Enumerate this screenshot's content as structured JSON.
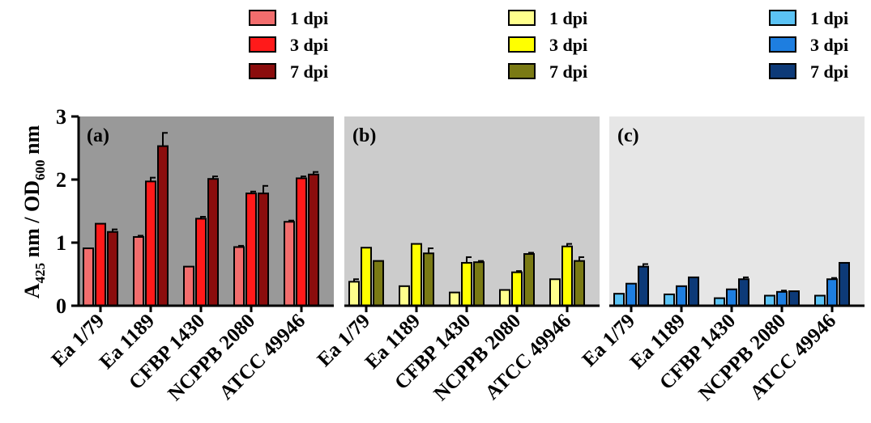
{
  "chart_data": {
    "type": "bar",
    "ylabel_parts": [
      "A",
      "425",
      " nm / OD",
      "600",
      " nm"
    ],
    "ylim": [
      0,
      3
    ],
    "yticks": [
      "0",
      "1",
      "2",
      "3"
    ],
    "categories": [
      "Ea 1/79",
      "Ea 1189",
      "CFBP 1430",
      "NCPPB 2080",
      "ATCC 49946"
    ],
    "panels": [
      {
        "label": "(a)",
        "background": "#999999",
        "series": [
          {
            "name": "1 dpi",
            "color": "#f26d6d",
            "values": [
              0.91,
              1.09,
              0.62,
              0.93,
              1.33
            ],
            "errors": [
              0.0,
              0.02,
              0.0,
              0.02,
              0.02
            ]
          },
          {
            "name": "3 dpi",
            "color": "#ff1a1a",
            "values": [
              1.3,
              1.97,
              1.38,
              1.78,
              2.02
            ],
            "errors": [
              0.0,
              0.06,
              0.03,
              0.03,
              0.03
            ]
          },
          {
            "name": "7 dpi",
            "color": "#8b0d0d",
            "values": [
              1.17,
              2.53,
              2.01,
              1.78,
              2.08
            ],
            "errors": [
              0.04,
              0.21,
              0.04,
              0.12,
              0.04
            ]
          }
        ]
      },
      {
        "label": "(b)",
        "background": "#cccccc",
        "series": [
          {
            "name": "1 dpi",
            "color": "#ffff8c",
            "values": [
              0.38,
              0.31,
              0.21,
              0.25,
              0.42
            ],
            "errors": [
              0.04,
              0.0,
              0.0,
              0.0,
              0.0
            ]
          },
          {
            "name": "3 dpi",
            "color": "#ffff00",
            "values": [
              0.92,
              0.98,
              0.68,
              0.53,
              0.94
            ],
            "errors": [
              0.0,
              0.0,
              0.09,
              0.02,
              0.04
            ]
          },
          {
            "name": "7 dpi",
            "color": "#7a7a14",
            "values": [
              0.71,
              0.83,
              0.69,
              0.82,
              0.71
            ],
            "errors": [
              0.0,
              0.08,
              0.02,
              0.02,
              0.06
            ]
          }
        ]
      },
      {
        "label": "(c)",
        "background": "#e6e6e6",
        "series": [
          {
            "name": "1 dpi",
            "color": "#5bc3f5",
            "values": [
              0.19,
              0.18,
              0.12,
              0.16,
              0.16
            ],
            "errors": [
              0.0,
              0.0,
              0.0,
              0.0,
              0.0
            ]
          },
          {
            "name": "3 dpi",
            "color": "#1e7ee0",
            "values": [
              0.35,
              0.31,
              0.26,
              0.22,
              0.42
            ],
            "errors": [
              0.0,
              0.0,
              0.0,
              0.02,
              0.02
            ]
          },
          {
            "name": "7 dpi",
            "color": "#0d3a78",
            "values": [
              0.62,
              0.45,
              0.42,
              0.23,
              0.68
            ],
            "errors": [
              0.04,
              0.0,
              0.03,
              0.0,
              0.0
            ]
          }
        ]
      }
    ]
  }
}
